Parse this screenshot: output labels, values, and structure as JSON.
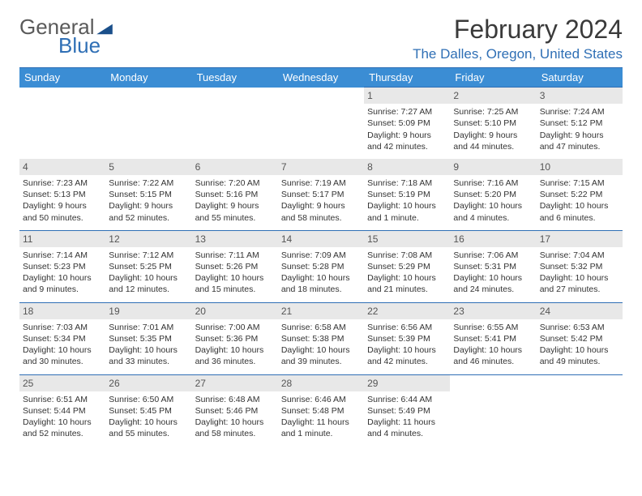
{
  "logo": {
    "general": "General",
    "blue": "Blue",
    "shape_color": "#1a4f8a"
  },
  "header": {
    "title": "February 2024",
    "location": "The Dalles, Oregon, United States"
  },
  "colors": {
    "header_bg": "#3b8dd4",
    "header_text": "#ffffff",
    "border": "#2f6fb5",
    "daynum_bg": "#e8e8e8"
  },
  "weekdays": [
    "Sunday",
    "Monday",
    "Tuesday",
    "Wednesday",
    "Thursday",
    "Friday",
    "Saturday"
  ],
  "weeks": [
    [
      null,
      null,
      null,
      null,
      {
        "day": "1",
        "sunrise": "Sunrise: 7:27 AM",
        "sunset": "Sunset: 5:09 PM",
        "daylight1": "Daylight: 9 hours",
        "daylight2": "and 42 minutes."
      },
      {
        "day": "2",
        "sunrise": "Sunrise: 7:25 AM",
        "sunset": "Sunset: 5:10 PM",
        "daylight1": "Daylight: 9 hours",
        "daylight2": "and 44 minutes."
      },
      {
        "day": "3",
        "sunrise": "Sunrise: 7:24 AM",
        "sunset": "Sunset: 5:12 PM",
        "daylight1": "Daylight: 9 hours",
        "daylight2": "and 47 minutes."
      }
    ],
    [
      {
        "day": "4",
        "sunrise": "Sunrise: 7:23 AM",
        "sunset": "Sunset: 5:13 PM",
        "daylight1": "Daylight: 9 hours",
        "daylight2": "and 50 minutes."
      },
      {
        "day": "5",
        "sunrise": "Sunrise: 7:22 AM",
        "sunset": "Sunset: 5:15 PM",
        "daylight1": "Daylight: 9 hours",
        "daylight2": "and 52 minutes."
      },
      {
        "day": "6",
        "sunrise": "Sunrise: 7:20 AM",
        "sunset": "Sunset: 5:16 PM",
        "daylight1": "Daylight: 9 hours",
        "daylight2": "and 55 minutes."
      },
      {
        "day": "7",
        "sunrise": "Sunrise: 7:19 AM",
        "sunset": "Sunset: 5:17 PM",
        "daylight1": "Daylight: 9 hours",
        "daylight2": "and 58 minutes."
      },
      {
        "day": "8",
        "sunrise": "Sunrise: 7:18 AM",
        "sunset": "Sunset: 5:19 PM",
        "daylight1": "Daylight: 10 hours",
        "daylight2": "and 1 minute."
      },
      {
        "day": "9",
        "sunrise": "Sunrise: 7:16 AM",
        "sunset": "Sunset: 5:20 PM",
        "daylight1": "Daylight: 10 hours",
        "daylight2": "and 4 minutes."
      },
      {
        "day": "10",
        "sunrise": "Sunrise: 7:15 AM",
        "sunset": "Sunset: 5:22 PM",
        "daylight1": "Daylight: 10 hours",
        "daylight2": "and 6 minutes."
      }
    ],
    [
      {
        "day": "11",
        "sunrise": "Sunrise: 7:14 AM",
        "sunset": "Sunset: 5:23 PM",
        "daylight1": "Daylight: 10 hours",
        "daylight2": "and 9 minutes."
      },
      {
        "day": "12",
        "sunrise": "Sunrise: 7:12 AM",
        "sunset": "Sunset: 5:25 PM",
        "daylight1": "Daylight: 10 hours",
        "daylight2": "and 12 minutes."
      },
      {
        "day": "13",
        "sunrise": "Sunrise: 7:11 AM",
        "sunset": "Sunset: 5:26 PM",
        "daylight1": "Daylight: 10 hours",
        "daylight2": "and 15 minutes."
      },
      {
        "day": "14",
        "sunrise": "Sunrise: 7:09 AM",
        "sunset": "Sunset: 5:28 PM",
        "daylight1": "Daylight: 10 hours",
        "daylight2": "and 18 minutes."
      },
      {
        "day": "15",
        "sunrise": "Sunrise: 7:08 AM",
        "sunset": "Sunset: 5:29 PM",
        "daylight1": "Daylight: 10 hours",
        "daylight2": "and 21 minutes."
      },
      {
        "day": "16",
        "sunrise": "Sunrise: 7:06 AM",
        "sunset": "Sunset: 5:31 PM",
        "daylight1": "Daylight: 10 hours",
        "daylight2": "and 24 minutes."
      },
      {
        "day": "17",
        "sunrise": "Sunrise: 7:04 AM",
        "sunset": "Sunset: 5:32 PM",
        "daylight1": "Daylight: 10 hours",
        "daylight2": "and 27 minutes."
      }
    ],
    [
      {
        "day": "18",
        "sunrise": "Sunrise: 7:03 AM",
        "sunset": "Sunset: 5:34 PM",
        "daylight1": "Daylight: 10 hours",
        "daylight2": "and 30 minutes."
      },
      {
        "day": "19",
        "sunrise": "Sunrise: 7:01 AM",
        "sunset": "Sunset: 5:35 PM",
        "daylight1": "Daylight: 10 hours",
        "daylight2": "and 33 minutes."
      },
      {
        "day": "20",
        "sunrise": "Sunrise: 7:00 AM",
        "sunset": "Sunset: 5:36 PM",
        "daylight1": "Daylight: 10 hours",
        "daylight2": "and 36 minutes."
      },
      {
        "day": "21",
        "sunrise": "Sunrise: 6:58 AM",
        "sunset": "Sunset: 5:38 PM",
        "daylight1": "Daylight: 10 hours",
        "daylight2": "and 39 minutes."
      },
      {
        "day": "22",
        "sunrise": "Sunrise: 6:56 AM",
        "sunset": "Sunset: 5:39 PM",
        "daylight1": "Daylight: 10 hours",
        "daylight2": "and 42 minutes."
      },
      {
        "day": "23",
        "sunrise": "Sunrise: 6:55 AM",
        "sunset": "Sunset: 5:41 PM",
        "daylight1": "Daylight: 10 hours",
        "daylight2": "and 46 minutes."
      },
      {
        "day": "24",
        "sunrise": "Sunrise: 6:53 AM",
        "sunset": "Sunset: 5:42 PM",
        "daylight1": "Daylight: 10 hours",
        "daylight2": "and 49 minutes."
      }
    ],
    [
      {
        "day": "25",
        "sunrise": "Sunrise: 6:51 AM",
        "sunset": "Sunset: 5:44 PM",
        "daylight1": "Daylight: 10 hours",
        "daylight2": "and 52 minutes."
      },
      {
        "day": "26",
        "sunrise": "Sunrise: 6:50 AM",
        "sunset": "Sunset: 5:45 PM",
        "daylight1": "Daylight: 10 hours",
        "daylight2": "and 55 minutes."
      },
      {
        "day": "27",
        "sunrise": "Sunrise: 6:48 AM",
        "sunset": "Sunset: 5:46 PM",
        "daylight1": "Daylight: 10 hours",
        "daylight2": "and 58 minutes."
      },
      {
        "day": "28",
        "sunrise": "Sunrise: 6:46 AM",
        "sunset": "Sunset: 5:48 PM",
        "daylight1": "Daylight: 11 hours",
        "daylight2": "and 1 minute."
      },
      {
        "day": "29",
        "sunrise": "Sunrise: 6:44 AM",
        "sunset": "Sunset: 5:49 PM",
        "daylight1": "Daylight: 11 hours",
        "daylight2": "and 4 minutes."
      },
      null,
      null
    ]
  ]
}
